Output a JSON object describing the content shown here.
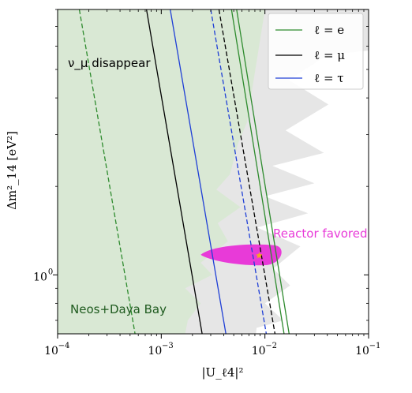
{
  "chart_data": {
    "type": "line",
    "xscale": "log",
    "yscale": "log",
    "xlim": [
      0.0001,
      0.1
    ],
    "ylim": [
      0.63,
      8.0
    ],
    "xlabel": "|U_ℓ4|²",
    "ylabel": "Δm²_14 [eV²]",
    "x_ticks": [
      {
        "value": 0.0001,
        "label": "10",
        "exp": "−4"
      },
      {
        "value": 0.001,
        "label": "10",
        "exp": "−3"
      },
      {
        "value": 0.01,
        "label": "10",
        "exp": "−2"
      },
      {
        "value": 0.1,
        "label": "10",
        "exp": "−1"
      }
    ],
    "y_ticks": [
      {
        "value": 1,
        "label": "10",
        "exp": "0"
      }
    ],
    "legend": {
      "placement": "top-right",
      "entries": [
        {
          "label": "ℓ = e",
          "color": "#2e8b2e"
        },
        {
          "label": "ℓ = μ",
          "color": "#000000"
        },
        {
          "label": "ℓ = τ",
          "color": "#1f3fd6"
        }
      ]
    },
    "series": [
      {
        "name": "ℓ = e",
        "color": "#2e8b2e",
        "style": "dashed",
        "points": [
          [
            0.000162,
            8.0
          ],
          [
            0.000558,
            0.63
          ]
        ]
      },
      {
        "name": "ℓ = e",
        "color": "#2e8b2e",
        "style": "solid",
        "points": [
          [
            0.00476,
            8.0
          ],
          [
            0.0153,
            0.63
          ]
        ]
      },
      {
        "name": "ℓ = e",
        "color": "#2e8b2e",
        "style": "solid",
        "points": [
          [
            0.00533,
            8.0
          ],
          [
            0.0171,
            0.63
          ]
        ]
      },
      {
        "name": "ℓ = μ",
        "color": "#000000",
        "style": "solid",
        "points": [
          [
            0.00072,
            8.0
          ],
          [
            0.00248,
            0.63
          ]
        ]
      },
      {
        "name": "ℓ = μ",
        "color": "#000000",
        "style": "dashed",
        "points": [
          [
            0.0036,
            8.0
          ],
          [
            0.0125,
            0.63
          ]
        ]
      },
      {
        "name": "ℓ = τ",
        "color": "#1f3fd6",
        "style": "solid",
        "points": [
          [
            0.00122,
            8.0
          ],
          [
            0.0042,
            0.63
          ]
        ]
      },
      {
        "name": "ℓ = τ",
        "color": "#1f3fd6",
        "style": "dashed",
        "points": [
          [
            0.003,
            8.0
          ],
          [
            0.0103,
            0.63
          ]
        ]
      }
    ],
    "regions": {
      "neos_daya_bay": {
        "color": "#d9e8d4",
        "boundary": [
          [
            0.01,
            8.0
          ],
          [
            0.0067,
            3.3
          ],
          [
            0.0055,
            2.8
          ],
          [
            0.0046,
            2.2
          ],
          [
            0.0034,
            1.95
          ],
          [
            0.0058,
            1.7
          ],
          [
            0.0035,
            1.5
          ],
          [
            0.0044,
            1.3
          ],
          [
            0.0024,
            1.1
          ],
          [
            0.0031,
            1.0
          ],
          [
            0.0017,
            0.9
          ],
          [
            0.0024,
            0.8
          ],
          [
            0.0018,
            0.7
          ],
          [
            0.0017,
            0.63
          ]
        ]
      },
      "nu_mu_disappear": {
        "color": "#e6e6e6",
        "boundary": [
          [
            0.1,
            8.0
          ],
          [
            0.1,
            5.8
          ],
          [
            0.04,
            5.6
          ],
          [
            0.017,
            4.6
          ],
          [
            0.041,
            3.8
          ],
          [
            0.0158,
            3.1
          ],
          [
            0.037,
            2.6
          ],
          [
            0.0118,
            2.35
          ],
          [
            0.03,
            2.05
          ],
          [
            0.01,
            1.85
          ],
          [
            0.026,
            1.62
          ],
          [
            0.0084,
            1.45
          ],
          [
            0.022,
            1.25
          ],
          [
            0.012,
            1.05
          ],
          [
            0.0175,
            0.92
          ],
          [
            0.01,
            0.8
          ],
          [
            0.015,
            0.7
          ],
          [
            0.0083,
            0.66
          ],
          [
            0.0082,
            0.63
          ]
        ]
      },
      "reactor_favored": {
        "color": "#e83ad8",
        "center": [
          0.0088,
          1.17
        ],
        "bestfit_color": "#f5a623"
      }
    },
    "annotations": [
      {
        "text": "ν_μ disappear",
        "color": "#000000"
      },
      {
        "text": "Reactor favored",
        "color": "#e83ad8"
      },
      {
        "text": "Neos+Daya Bay",
        "color": "#1e5a1e"
      }
    ]
  }
}
